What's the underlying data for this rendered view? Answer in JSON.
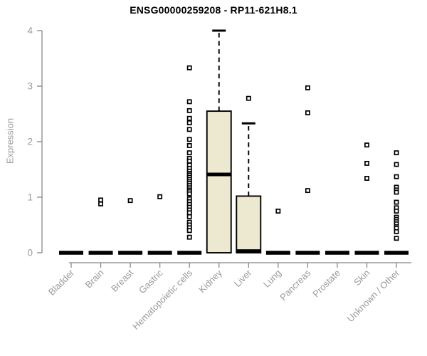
{
  "chart_data": {
    "type": "boxplot",
    "title": "ENSG00000259208 - RP11-621H8.1",
    "ylabel": "Expression",
    "xlabel": "",
    "ylim": [
      0,
      4
    ],
    "yticks": [
      0,
      1,
      2,
      3,
      4
    ],
    "grid": false,
    "legend": false,
    "categories": [
      "Bladder",
      "Brain",
      "Breast",
      "Gastric",
      "Hematopoietic cells",
      "Kidney",
      "Liver",
      "Lung",
      "Pancreas",
      "Prostate",
      "Skin",
      "Unknown / Other"
    ],
    "boxes": [
      {
        "category": "Bladder",
        "min": 0,
        "q1": 0,
        "median": 0,
        "q3": 0,
        "max": 0,
        "outliers": []
      },
      {
        "category": "Brain",
        "min": 0,
        "q1": 0,
        "median": 0,
        "q3": 0,
        "max": 0,
        "outliers": [
          0.95,
          0.88
        ]
      },
      {
        "category": "Breast",
        "min": 0,
        "q1": 0,
        "median": 0,
        "q3": 0,
        "max": 0,
        "outliers": [
          0.94
        ]
      },
      {
        "category": "Gastric",
        "min": 0,
        "q1": 0,
        "median": 0,
        "q3": 0,
        "max": 0,
        "outliers": [
          1.01
        ]
      },
      {
        "category": "Hematopoietic cells",
        "min": 0,
        "q1": 0,
        "median": 0,
        "q3": 0,
        "max": 0,
        "outliers": [
          3.33,
          2.72,
          2.56,
          2.42,
          2.34,
          2.22,
          2.04,
          1.93,
          1.8,
          1.7,
          1.65,
          1.58,
          1.52,
          1.47,
          1.43,
          1.4,
          1.36,
          1.32,
          1.28,
          1.25,
          1.21,
          1.17,
          1.13,
          1.1,
          1.06,
          0.97,
          0.92,
          0.87,
          0.82,
          0.77,
          0.72,
          0.65,
          0.55,
          0.5,
          0.45,
          0.4,
          0.28
        ]
      },
      {
        "category": "Kidney",
        "min": 0,
        "q1": 0,
        "median": 1.41,
        "q3": 2.55,
        "max": 4.0,
        "outliers": []
      },
      {
        "category": "Liver",
        "min": 0,
        "q1": 0,
        "median": 0.03,
        "q3": 1.02,
        "max": 2.33,
        "outliers": [
          2.78
        ]
      },
      {
        "category": "Lung",
        "min": 0,
        "q1": 0,
        "median": 0,
        "q3": 0,
        "max": 0,
        "outliers": [
          0.75
        ]
      },
      {
        "category": "Pancreas",
        "min": 0,
        "q1": 0,
        "median": 0,
        "q3": 0,
        "max": 0,
        "outliers": [
          2.97,
          2.52,
          1.12
        ]
      },
      {
        "category": "Prostate",
        "min": 0,
        "q1": 0,
        "median": 0,
        "q3": 0,
        "max": 0,
        "outliers": []
      },
      {
        "category": "Skin",
        "min": 0,
        "q1": 0,
        "median": 0,
        "q3": 0,
        "max": 0,
        "outliers": [
          1.94,
          1.61,
          1.34
        ]
      },
      {
        "category": "Unknown / Other",
        "min": 0,
        "q1": 0,
        "median": 0,
        "q3": 0,
        "max": 0,
        "outliers": [
          1.8,
          1.59,
          1.37,
          1.18,
          1.13,
          1.09,
          0.91,
          0.81,
          0.75,
          0.64,
          0.6,
          0.56,
          0.52,
          0.47,
          0.44,
          0.38,
          0.26
        ]
      }
    ],
    "colors": {
      "box_fill": "#EDE8D0",
      "box_border": "#000000",
      "median": "#000000",
      "whisker": "#000000",
      "outlier_fill": "#ffffff",
      "outlier_border": "#000000",
      "axis_line": "#888888",
      "tick_label": "#9a9a9a",
      "title": "#000000"
    }
  }
}
